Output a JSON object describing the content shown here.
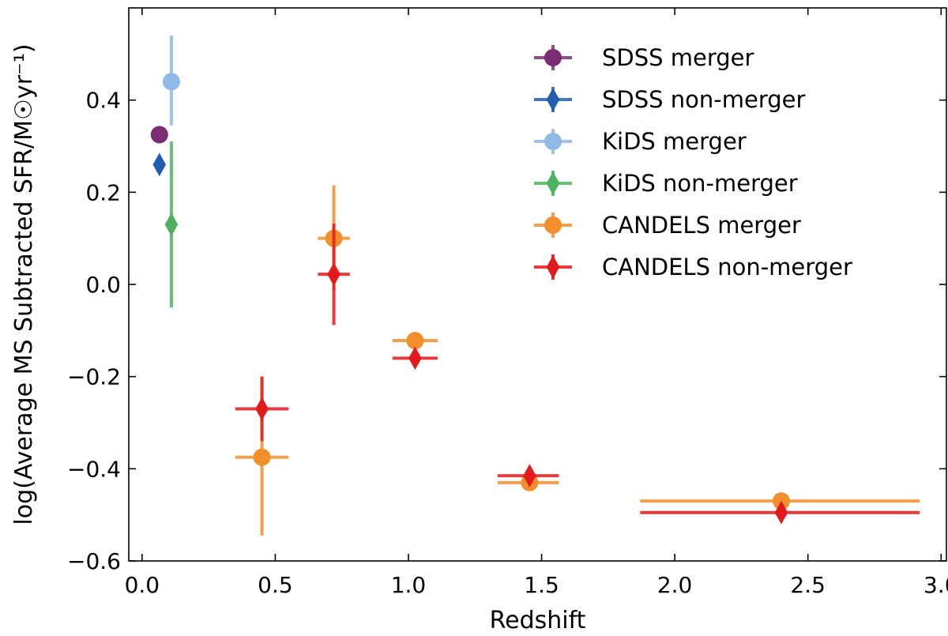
{
  "chart_data": {
    "type": "scatter",
    "title": "",
    "xlabel": "Redshift",
    "ylabel": "log(Average MS Subtracted SFR/M☉yr⁻¹)",
    "xlim": [
      -0.05,
      3.02
    ],
    "ylim": [
      -0.6,
      0.6
    ],
    "xticks": [
      0.0,
      0.5,
      1.0,
      1.5,
      2.0,
      2.5,
      3.0
    ],
    "xtick_labels": [
      "0.0",
      "0.5",
      "1.0",
      "1.5",
      "2.0",
      "2.5",
      "3.0"
    ],
    "yticks": [
      -0.6,
      -0.4,
      -0.2,
      0.0,
      0.2,
      0.4
    ],
    "ytick_labels": [
      "−0.6",
      "−0.4",
      "−0.2",
      "0.0",
      "0.2",
      "0.4"
    ],
    "grid": false,
    "legend_position": "top-right",
    "series": [
      {
        "name": "SDSS merger",
        "color": "#7b2c75",
        "marker": "circle",
        "points": [
          {
            "x": 0.065,
            "y": 0.325,
            "xerr": [
              0.0,
              0.0
            ],
            "yerr": [
              0.012,
              0.012
            ]
          }
        ]
      },
      {
        "name": "SDSS non-merger",
        "color": "#1f5fad",
        "marker": "diamond",
        "points": [
          {
            "x": 0.065,
            "y": 0.26,
            "xerr": [
              0.0,
              0.0
            ],
            "yerr": [
              0.012,
              0.012
            ]
          }
        ]
      },
      {
        "name": "KiDS merger",
        "color": "#8fb9e6",
        "marker": "circle",
        "points": [
          {
            "x": 0.11,
            "y": 0.44,
            "xerr": [
              0.0,
              0.0
            ],
            "yerr": [
              0.095,
              0.1
            ]
          }
        ]
      },
      {
        "name": "KiDS non-merger",
        "color": "#4db160",
        "marker": "diamond",
        "points": [
          {
            "x": 0.11,
            "y": 0.13,
            "xerr": [
              0.0,
              0.0
            ],
            "yerr": [
              0.18,
              0.18
            ]
          }
        ]
      },
      {
        "name": "CANDELS merger",
        "color": "#f28e2b",
        "marker": "circle",
        "points": [
          {
            "x": 0.45,
            "y": -0.375,
            "xerr": [
              0.1,
              0.1
            ],
            "yerr": [
              0.17,
              0.175
            ]
          },
          {
            "x": 0.72,
            "y": 0.1,
            "xerr": [
              0.06,
              0.06
            ],
            "yerr": [
              0.115,
              0.115
            ]
          },
          {
            "x": 1.025,
            "y": -0.122,
            "xerr": [
              0.085,
              0.085
            ],
            "yerr": [
              0.01,
              0.01
            ]
          },
          {
            "x": 1.455,
            "y": -0.43,
            "xerr": [
              0.12,
              0.11
            ],
            "yerr": [
              0.01,
              0.01
            ]
          },
          {
            "x": 2.4,
            "y": -0.47,
            "xerr": [
              0.53,
              0.52
            ],
            "yerr": [
              0.01,
              0.01
            ]
          }
        ]
      },
      {
        "name": "CANDELS non-merger",
        "color": "#e31a1c",
        "marker": "diamond",
        "points": [
          {
            "x": 0.45,
            "y": -0.27,
            "xerr": [
              0.1,
              0.1
            ],
            "yerr": [
              0.07,
              0.07
            ]
          },
          {
            "x": 0.72,
            "y": 0.022,
            "xerr": [
              0.06,
              0.06
            ],
            "yerr": [
              0.11,
              0.11
            ]
          },
          {
            "x": 1.025,
            "y": -0.16,
            "xerr": [
              0.085,
              0.085
            ],
            "yerr": [
              0.015,
              0.015
            ]
          },
          {
            "x": 1.455,
            "y": -0.415,
            "xerr": [
              0.12,
              0.11
            ],
            "yerr": [
              0.015,
              0.015
            ]
          },
          {
            "x": 2.4,
            "y": -0.495,
            "xerr": [
              0.53,
              0.52
            ],
            "yerr": [
              0.015,
              0.015
            ]
          }
        ]
      }
    ]
  }
}
